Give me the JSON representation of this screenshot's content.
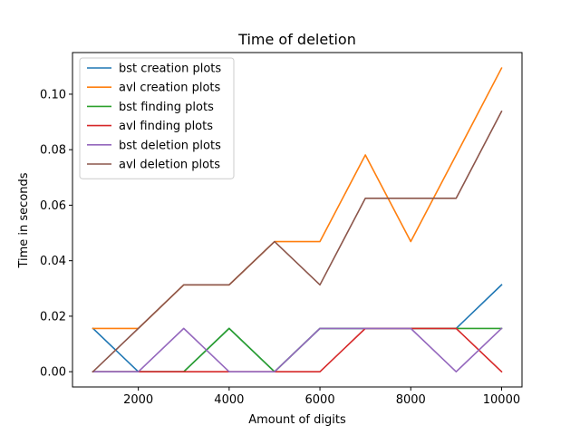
{
  "chart_data": {
    "type": "line",
    "title": "Time of deletion",
    "xlabel": "Amount of digits",
    "ylabel": "Time in seconds",
    "x": [
      1000,
      2000,
      3000,
      4000,
      5000,
      6000,
      7000,
      8000,
      9000,
      10000
    ],
    "xlim": [
      550,
      10450
    ],
    "ylim": [
      -0.0055,
      0.115
    ],
    "xticks": [
      2000,
      4000,
      6000,
      8000,
      10000
    ],
    "yticks": [
      0.0,
      0.02,
      0.04,
      0.06,
      0.08,
      0.1
    ],
    "xtick_labels": [
      "2000",
      "4000",
      "6000",
      "8000",
      "10000"
    ],
    "ytick_labels": [
      "0.00",
      "0.02",
      "0.04",
      "0.06",
      "0.08",
      "0.10"
    ],
    "grid": false,
    "legend_position": "upper-left",
    "series": [
      {
        "name": "bst creation plots",
        "color": "#1f77b4",
        "values": [
          0.0156,
          0.0,
          0.0,
          0.0156,
          0.0,
          0.0156,
          0.0156,
          0.0156,
          0.0156,
          0.0313
        ]
      },
      {
        "name": "avl creation plots",
        "color": "#ff7f0e",
        "values": [
          0.0156,
          0.0156,
          0.0313,
          0.0313,
          0.0469,
          0.0469,
          0.0781,
          0.0469,
          0.0781,
          0.1094
        ]
      },
      {
        "name": "bst finding plots",
        "color": "#2ca02c",
        "values": [
          0.0,
          0.0,
          0.0,
          0.0156,
          0.0,
          0.0156,
          0.0156,
          0.0156,
          0.0156,
          0.0156
        ]
      },
      {
        "name": "avl finding plots",
        "color": "#d62728",
        "values": [
          0.0,
          0.0,
          0.0,
          0.0,
          0.0,
          0.0,
          0.0156,
          0.0156,
          0.0156,
          0.0
        ]
      },
      {
        "name": "bst deletion plots",
        "color": "#9467bd",
        "values": [
          0.0,
          0.0,
          0.0156,
          0.0,
          0.0,
          0.0156,
          0.0156,
          0.0156,
          0.0,
          0.0156
        ]
      },
      {
        "name": "avl deletion plots",
        "color": "#8c564b",
        "values": [
          0.0,
          0.0156,
          0.0313,
          0.0313,
          0.0469,
          0.0313,
          0.0625,
          0.0625,
          0.0625,
          0.0938
        ]
      }
    ]
  }
}
